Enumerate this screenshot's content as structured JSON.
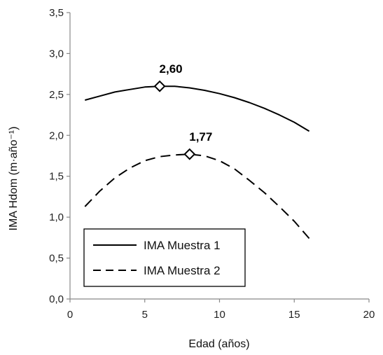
{
  "chart_data": {
    "type": "line",
    "xlabel": "Edad (años)",
    "ylabel": "IMA Hdom (m·año⁻¹)",
    "xlim": [
      0,
      20
    ],
    "ylim": [
      0,
      3.5
    ],
    "x_ticks": [
      "0",
      "5",
      "10",
      "15",
      "20"
    ],
    "y_ticks": [
      "0,0",
      "0,5",
      "1,0",
      "1,5",
      "2,0",
      "2,5",
      "3,0",
      "3,5"
    ],
    "grid": false,
    "legend_position": "bottom-left",
    "series": [
      {
        "name": "IMA Muestra 1",
        "style": "solid",
        "x": [
          1,
          2,
          3,
          4,
          5,
          6,
          7,
          8,
          9,
          10,
          11,
          12,
          13,
          14,
          15,
          16
        ],
        "y": [
          2.43,
          2.48,
          2.53,
          2.56,
          2.59,
          2.6,
          2.6,
          2.58,
          2.55,
          2.51,
          2.46,
          2.4,
          2.33,
          2.25,
          2.16,
          2.05
        ]
      },
      {
        "name": "IMA Muestra 2",
        "style": "dashed",
        "x": [
          1,
          2,
          3,
          4,
          5,
          6,
          7,
          8,
          9,
          10,
          11,
          12,
          13,
          14,
          15,
          16
        ],
        "y": [
          1.13,
          1.32,
          1.48,
          1.6,
          1.69,
          1.74,
          1.76,
          1.77,
          1.75,
          1.69,
          1.59,
          1.45,
          1.3,
          1.13,
          0.95,
          0.74
        ]
      }
    ],
    "annotations": [
      {
        "label": "2,60",
        "x": 6,
        "y": 2.6,
        "series": "IMA Muestra 1"
      },
      {
        "label": "1,77",
        "x": 8,
        "y": 1.77,
        "series": "IMA Muestra 2"
      }
    ]
  }
}
